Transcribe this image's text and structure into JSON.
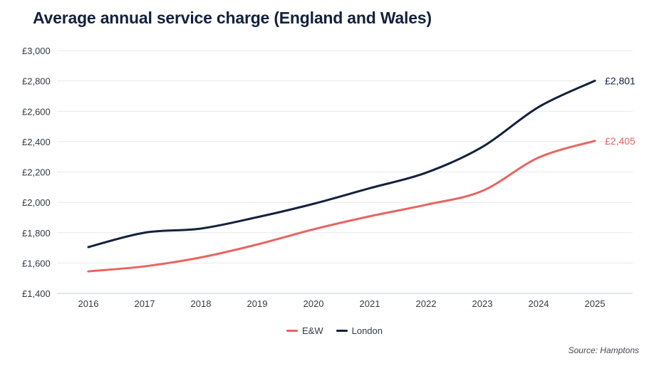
{
  "chart_data": {
    "type": "line",
    "title": "Average annual service charge (England and Wales)",
    "categories": [
      "2016",
      "2017",
      "2018",
      "2019",
      "2020",
      "2021",
      "2022",
      "2023",
      "2024",
      "2025"
    ],
    "series": [
      {
        "name": "E&W",
        "color": "#e8645f",
        "values": [
          1545,
          1578,
          1637,
          1722,
          1822,
          1908,
          1984,
          2075,
          2295,
          2405
        ],
        "end_label": "£2,405"
      },
      {
        "name": "London",
        "color": "#14213d",
        "values": [
          1705,
          1800,
          1827,
          1902,
          1990,
          2093,
          2195,
          2365,
          2628,
          2801
        ],
        "end_label": "£2,801"
      }
    ],
    "yticks": [
      "£1,400",
      "£1,600",
      "£1,800",
      "£2,000",
      "£2,200",
      "£2,400",
      "£2,600",
      "£2,800",
      "£3,000"
    ],
    "ylim": [
      1400,
      3000
    ],
    "grid": true,
    "legend_position": "bottom-center",
    "source": "Source: Hamptons"
  }
}
